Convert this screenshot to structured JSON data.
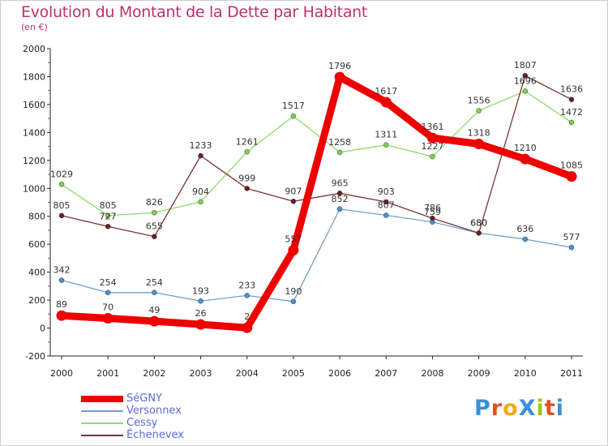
{
  "title": "Evolution du Montant de la Dette par Habitant",
  "subtitle": "(en €)",
  "brand": {
    "text": "ProXiti",
    "letter_colors": [
      "#3a8fd6",
      "#e0522a",
      "#f2a818",
      "#3a8fd6",
      "#9ac81e",
      "#e0522a",
      "#3a8fd6"
    ]
  },
  "chart_data": {
    "type": "line",
    "title": "Evolution du Montant de la Dette par Habitant",
    "ylabel": "(en €)",
    "xlabel": "",
    "x": [
      "2000",
      "2001",
      "2002",
      "2003",
      "2004",
      "2005",
      "2006",
      "2007",
      "2008",
      "2009",
      "2010",
      "2011"
    ],
    "ylim": [
      -200,
      2000
    ],
    "yticks": [
      "-200",
      "0",
      "200",
      "400",
      "600",
      "800",
      "1000",
      "1200",
      "1400",
      "1600",
      "1800",
      "2000"
    ],
    "grid": false,
    "legend_position": "bottom-left",
    "series": [
      {
        "name": "SéGNY",
        "color": "#ee0000",
        "values": [
          89,
          70,
          49,
          26,
          2,
          557,
          1796,
          1617,
          1361,
          1318,
          1210,
          1085
        ],
        "labels": [
          "89",
          "70",
          "49",
          "26",
          "2",
          "557",
          "1796",
          "1617",
          "1361",
          "1318",
          "1210",
          "1085"
        ]
      },
      {
        "name": "Versonnex",
        "color": "#6fa0cf",
        "marker": "#4f8fd0",
        "values": [
          342,
          254,
          254,
          193,
          233,
          190,
          852,
          807,
          759,
          680,
          636,
          577
        ],
        "labels": [
          "342",
          "254",
          "254",
          "193",
          "233",
          "190",
          "852",
          "807",
          "759",
          "680",
          "636",
          "577"
        ]
      },
      {
        "name": "Cessy",
        "color": "#8fdc6a",
        "marker": "#7fd050",
        "values": [
          1029,
          805,
          826,
          904,
          1261,
          1517,
          1258,
          1311,
          1227,
          1556,
          1696,
          1472
        ],
        "labels": [
          "1029",
          "805",
          "826",
          "904",
          "1261",
          "1517",
          "1258",
          "1311",
          "1227",
          "1556",
          "1696",
          "1472"
        ]
      },
      {
        "name": "Échenevex",
        "color": "#7a3438",
        "marker": "#6a1f24",
        "values": [
          805,
          727,
          655,
          1233,
          999,
          907,
          965,
          903,
          786,
          680,
          1807,
          1636
        ],
        "labels": [
          "805",
          "727",
          "655",
          "1233",
          "999",
          "907",
          "965",
          "903",
          "786",
          "680",
          "1807",
          "1636"
        ]
      }
    ]
  }
}
